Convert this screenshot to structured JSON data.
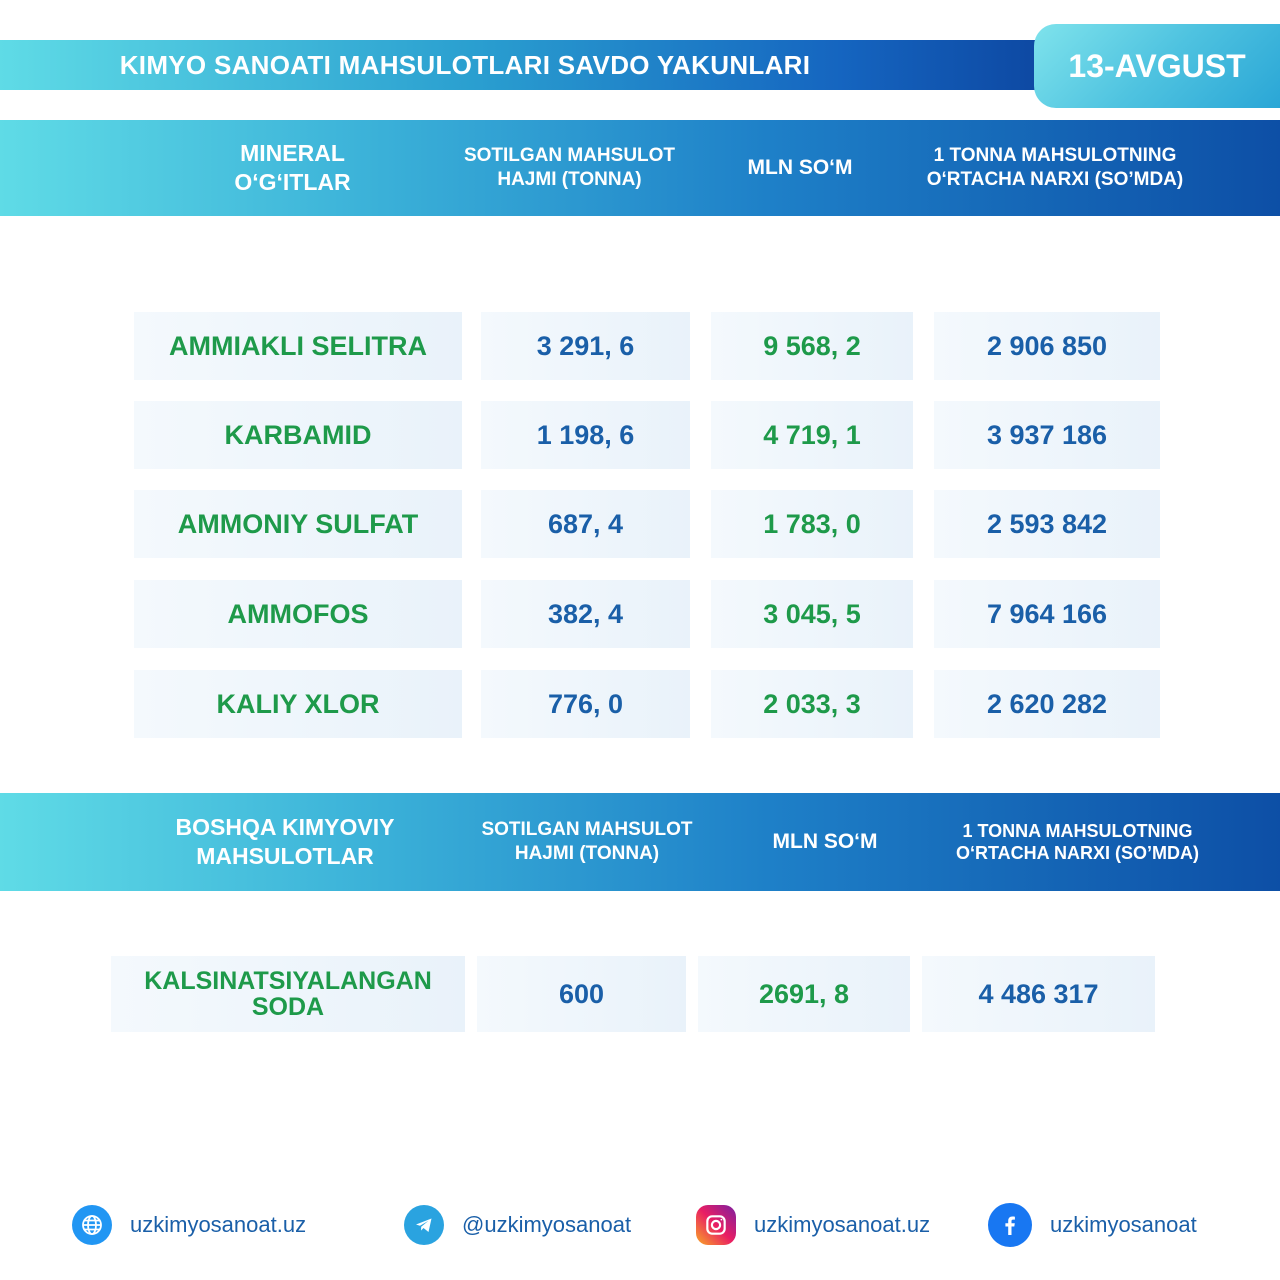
{
  "title": "KIMYO SANOATI MAHSULOTLARI SAVDO YAKUNLARI",
  "date": "13-AVGUST",
  "section1": {
    "headers": [
      "MINERAL O‘G‘ITLAR",
      "SOTILGAN MAHSULOT HAJMI (TONNA)",
      "MLN SO‘M",
      "1 TONNA MAHSULOTNING O‘RTACHA NARXI (SO’MDA)"
    ],
    "rows": [
      {
        "name": "AMMIAKLI SELITRA",
        "volume": "3 291, 6",
        "mln": "9 568, 2",
        "price": "2 906 850"
      },
      {
        "name": "KARBAMID",
        "volume": "1 198, 6",
        "mln": "4 719, 1",
        "price": "3 937 186"
      },
      {
        "name": "AMMONIY SULFAT",
        "volume": "687, 4",
        "mln": "1 783, 0",
        "price": "2 593 842"
      },
      {
        "name": "AMMOFOS",
        "volume": "382, 4",
        "mln": "3 045, 5",
        "price": "7 964 166"
      },
      {
        "name": "KALIY XLOR",
        "volume": "776, 0",
        "mln": "2 033, 3",
        "price": "2 620 282"
      }
    ]
  },
  "section2": {
    "headers": [
      "BOSHQA KIMYOVIY MAHSULOTLAR",
      "SOTILGAN MAHSULOT HAJMI (TONNA)",
      "MLN SO‘M",
      "1 TONNA MAHSULOTNING O‘RTACHA NARXI (SO’MDA)"
    ],
    "rows": [
      {
        "name": "KALSINATSIYALANGAN SODA",
        "volume": "600",
        "mln": "2691, 8",
        "price": "4 486 317"
      }
    ]
  },
  "footer": [
    {
      "icon": "globe-icon",
      "text": "uzkimyosanoat.uz"
    },
    {
      "icon": "telegram-icon",
      "text": "@uzkimyosanoat"
    },
    {
      "icon": "instagram-icon",
      "text": "uzkimyosanoat.uz"
    },
    {
      "icon": "facebook-icon",
      "text": "uzkimyosanoat"
    }
  ],
  "colors": {
    "green": "#1e9a4a",
    "blue": "#1a5fa8",
    "accent_dark": "#0d47a1",
    "accent_light": "#5fdbe6"
  }
}
